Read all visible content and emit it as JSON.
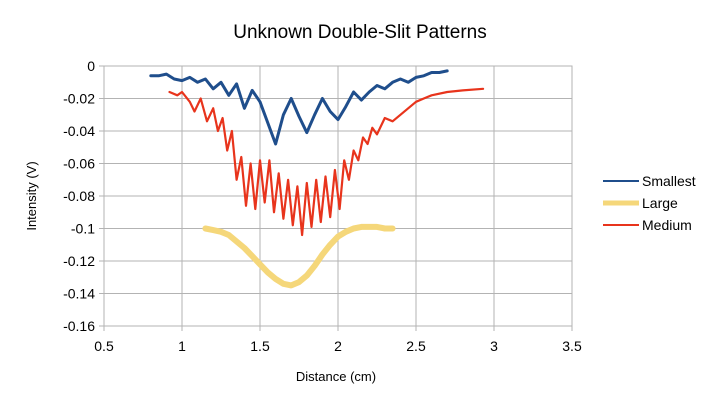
{
  "chart_data": {
    "type": "line",
    "title": "Unknown Double-Slit Patterns",
    "xlabel": "Distance (cm)",
    "ylabel": "Intensity (V)",
    "xlim": [
      0.5,
      3.5
    ],
    "ylim": [
      -0.16,
      0
    ],
    "x_ticks": [
      0.5,
      1,
      1.5,
      2,
      2.5,
      3,
      3.5
    ],
    "y_ticks": [
      0,
      -0.02,
      -0.04,
      -0.06,
      -0.08,
      -0.1,
      -0.12,
      -0.14,
      -0.16
    ],
    "x_tick_labels": [
      "0.5",
      "1",
      "1.5",
      "2",
      "2.5",
      "3",
      "3.5"
    ],
    "y_tick_labels": [
      "0",
      "-0.02",
      "-0.04",
      "-0.06",
      "-0.08",
      "-0.1",
      "-0.12",
      "-0.14",
      "-0.16"
    ],
    "grid": true,
    "legend_position": "right",
    "series": [
      {
        "name": "Smallest",
        "color": "#1f4e8c",
        "x": [
          0.8,
          0.85,
          0.9,
          0.95,
          1.0,
          1.05,
          1.1,
          1.15,
          1.2,
          1.25,
          1.3,
          1.35,
          1.4,
          1.45,
          1.5,
          1.55,
          1.6,
          1.65,
          1.7,
          1.75,
          1.8,
          1.85,
          1.9,
          1.95,
          2.0,
          2.05,
          2.1,
          2.15,
          2.2,
          2.25,
          2.3,
          2.35,
          2.4,
          2.45,
          2.5,
          2.55,
          2.6,
          2.65,
          2.7
        ],
        "y": [
          -0.006,
          -0.006,
          -0.005,
          -0.008,
          -0.009,
          -0.007,
          -0.01,
          -0.008,
          -0.014,
          -0.01,
          -0.018,
          -0.011,
          -0.026,
          -0.015,
          -0.022,
          -0.035,
          -0.048,
          -0.03,
          -0.02,
          -0.031,
          -0.041,
          -0.03,
          -0.02,
          -0.028,
          -0.033,
          -0.025,
          -0.016,
          -0.021,
          -0.016,
          -0.012,
          -0.014,
          -0.01,
          -0.008,
          -0.01,
          -0.007,
          -0.006,
          -0.004,
          -0.004,
          -0.003
        ]
      },
      {
        "name": "Large",
        "color": "#f5d77a",
        "x": [
          1.15,
          1.2,
          1.25,
          1.3,
          1.35,
          1.4,
          1.45,
          1.5,
          1.55,
          1.6,
          1.65,
          1.7,
          1.75,
          1.8,
          1.85,
          1.9,
          1.95,
          2.0,
          2.05,
          2.1,
          2.15,
          2.2,
          2.25,
          2.3,
          2.35
        ],
        "y": [
          -0.1,
          -0.101,
          -0.102,
          -0.104,
          -0.108,
          -0.112,
          -0.117,
          -0.122,
          -0.127,
          -0.131,
          -0.134,
          -0.135,
          -0.133,
          -0.129,
          -0.123,
          -0.116,
          -0.11,
          -0.105,
          -0.102,
          -0.1,
          -0.099,
          -0.099,
          -0.099,
          -0.1,
          -0.1
        ]
      },
      {
        "name": "Medium",
        "color": "#e8341c",
        "x": [
          0.92,
          0.97,
          1.0,
          1.05,
          1.08,
          1.12,
          1.16,
          1.2,
          1.23,
          1.26,
          1.29,
          1.32,
          1.35,
          1.38,
          1.41,
          1.44,
          1.47,
          1.5,
          1.53,
          1.56,
          1.59,
          1.62,
          1.65,
          1.68,
          1.71,
          1.74,
          1.77,
          1.8,
          1.83,
          1.86,
          1.89,
          1.92,
          1.95,
          1.98,
          2.01,
          2.04,
          2.07,
          2.1,
          2.13,
          2.16,
          2.19,
          2.22,
          2.25,
          2.3,
          2.35,
          2.4,
          2.45,
          2.5,
          2.55,
          2.6,
          2.7,
          2.8,
          2.93
        ],
        "y": [
          -0.016,
          -0.018,
          -0.016,
          -0.022,
          -0.028,
          -0.02,
          -0.034,
          -0.026,
          -0.04,
          -0.032,
          -0.052,
          -0.04,
          -0.07,
          -0.056,
          -0.086,
          -0.06,
          -0.088,
          -0.058,
          -0.084,
          -0.058,
          -0.09,
          -0.066,
          -0.094,
          -0.07,
          -0.098,
          -0.074,
          -0.104,
          -0.072,
          -0.099,
          -0.07,
          -0.096,
          -0.068,
          -0.093,
          -0.064,
          -0.088,
          -0.058,
          -0.07,
          -0.052,
          -0.058,
          -0.044,
          -0.048,
          -0.038,
          -0.042,
          -0.032,
          -0.034,
          -0.03,
          -0.026,
          -0.022,
          -0.02,
          -0.018,
          -0.016,
          -0.015,
          -0.014
        ]
      }
    ]
  }
}
